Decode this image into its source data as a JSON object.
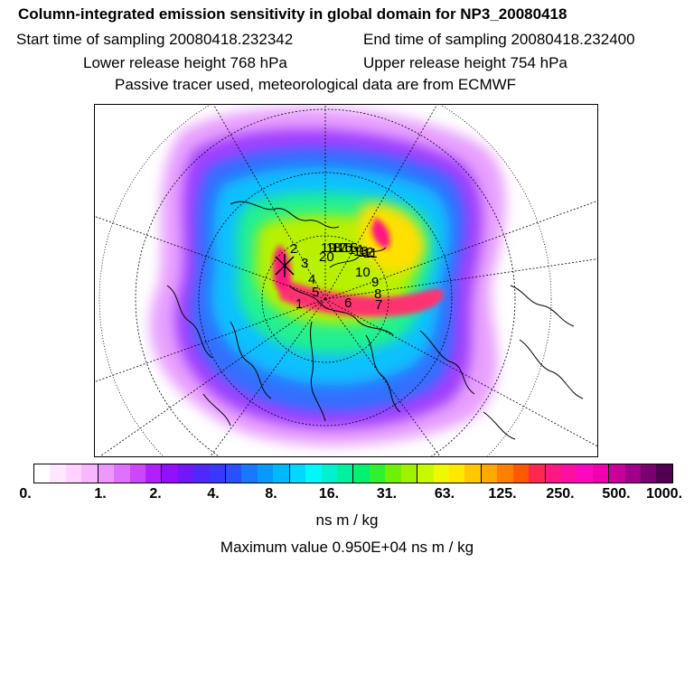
{
  "header": {
    "title": "Column-integrated emission sensitivity in global domain for NP3_20080418",
    "start_time": "Start time of sampling 20080418.232342",
    "end_time": "End time of sampling 20080418.232400",
    "lower_release": "Lower release height  768 hPa",
    "upper_release": "Upper release height  754 hPa",
    "tracer_note": "Passive tracer used, meteorological data are from ECMWF"
  },
  "map": {
    "projection": "north polar stereographic",
    "point_labels": [
      "20",
      "10",
      "9",
      "8",
      "7",
      "6",
      "5",
      "4",
      "3",
      "2",
      "1",
      "19",
      "18",
      "17",
      "16",
      "15",
      "14",
      "13",
      "12",
      "11"
    ]
  },
  "colorbar": {
    "colors": [
      "#ffffff",
      "#ffe8ff",
      "#ffd2ff",
      "#f8b8ff",
      "#ee98ff",
      "#e070ff",
      "#cc48ff",
      "#b020ff",
      "#9010ff",
      "#7018f8",
      "#5028ff",
      "#3838ff",
      "#2850ff",
      "#1878ff",
      "#0898ff",
      "#00b8ff",
      "#00d8ff",
      "#00f8f8",
      "#00f0d0",
      "#00f0a0",
      "#00f070",
      "#30f030",
      "#70f000",
      "#a0f000",
      "#c8f800",
      "#f0f800",
      "#ffe800",
      "#ffc800",
      "#ffa800",
      "#ff8000",
      "#ff5800",
      "#ff2850",
      "#ff1880",
      "#ff10a0",
      "#ff08c0",
      "#ee00b0",
      "#c8009a",
      "#a00088",
      "#780070",
      "#500050"
    ],
    "tick_labels": [
      "0.",
      "1.",
      "2.",
      "4.",
      "8.",
      "16.",
      "31.",
      "63.",
      "125.",
      "250.",
      "500.",
      "1000."
    ],
    "units": "ns m / kg",
    "max_value": "Maximum value  0.950E+04 ns m / kg"
  }
}
